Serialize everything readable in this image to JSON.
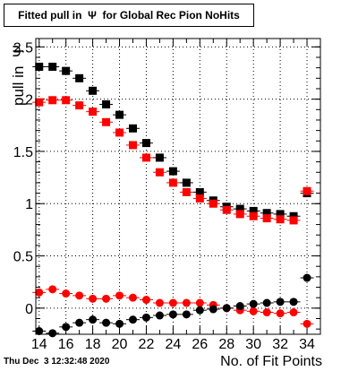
{
  "title": "Fitted pull in  Ψ  for Global Rec Pion NoHits",
  "timestamp": "Thu Dec  3 12:32:48 2020",
  "chart_data": {
    "type": "scatter",
    "title": "Fitted pull in  Ψ  for Global Rec Pion NoHits",
    "xlabel": "No. of Fit Points",
    "ylabel": "pull in  Ψ",
    "xlim": [
      13.75,
      35
    ],
    "ylim": [
      -0.25,
      2.58
    ],
    "xticks": [
      "14",
      "16",
      "18",
      "20",
      "22",
      "24",
      "26",
      "28",
      "30",
      "32",
      "34"
    ],
    "yticks": [
      "0",
      "0.5",
      "1",
      "1.5",
      "2",
      "2.5"
    ],
    "grid": true,
    "x": [
      14,
      15,
      16,
      17,
      18,
      19,
      20,
      21,
      22,
      23,
      24,
      25,
      26,
      27,
      28,
      29,
      30,
      31,
      32,
      33,
      34
    ],
    "series": [
      {
        "marker": "square",
        "color": "#000000",
        "values": [
          2.31,
          2.31,
          2.27,
          2.2,
          2.08,
          1.95,
          1.85,
          1.72,
          1.58,
          1.44,
          1.31,
          1.2,
          1.11,
          1.03,
          0.97,
          0.95,
          0.93,
          0.91,
          0.9,
          0.88,
          1.1
        ]
      },
      {
        "marker": "square",
        "color": "#ff0000",
        "values": [
          1.97,
          1.99,
          1.99,
          1.94,
          1.88,
          1.78,
          1.68,
          1.56,
          1.44,
          1.3,
          1.2,
          1.11,
          1.05,
          1.0,
          0.94,
          0.9,
          0.88,
          0.86,
          0.85,
          0.84,
          1.12
        ]
      },
      {
        "marker": "circle",
        "color": "#ff0000",
        "values": [
          0.15,
          0.18,
          0.14,
          0.12,
          0.09,
          0.09,
          0.12,
          0.1,
          0.08,
          0.05,
          0.05,
          0.05,
          0.05,
          0.03,
          0.0,
          -0.02,
          -0.03,
          -0.04,
          -0.05,
          -0.04,
          -0.15
        ]
      },
      {
        "marker": "circle",
        "color": "#000000",
        "values": [
          -0.22,
          -0.24,
          -0.18,
          -0.14,
          -0.11,
          -0.14,
          -0.15,
          -0.11,
          -0.09,
          -0.07,
          -0.06,
          -0.06,
          -0.02,
          -0.01,
          0.0,
          0.02,
          0.04,
          0.05,
          0.06,
          0.06,
          0.29
        ]
      }
    ]
  }
}
